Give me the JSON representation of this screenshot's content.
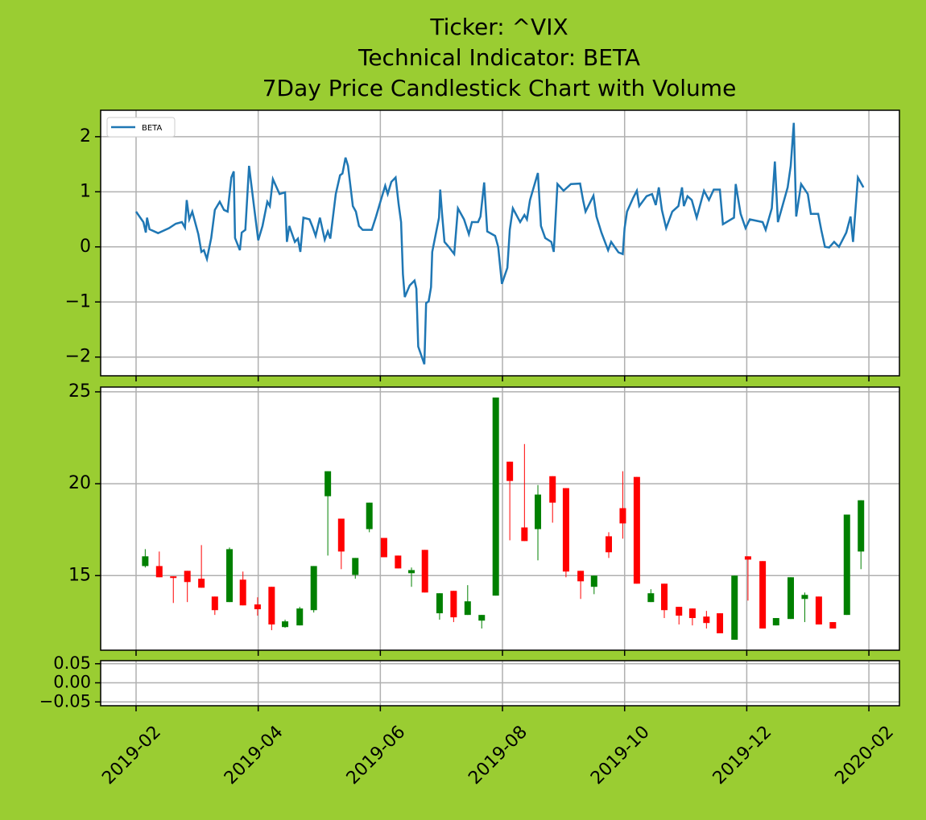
{
  "chart_data": [
    {
      "type": "line",
      "title": [
        "Ticker: ^VIX",
        "Technical Indicator: BETA",
        "7Day Price Candlestick Chart with Volume"
      ],
      "legend": "upper left",
      "grid": true,
      "ylim": [
        -2.34,
        2.48
      ],
      "yticks": [
        {
          "value": -2,
          "label": "−2"
        },
        {
          "value": -1,
          "label": "−1"
        },
        0,
        1,
        2
      ],
      "x": [
        0.0,
        0.12,
        0.16,
        0.18,
        0.22,
        0.36,
        0.54,
        0.65,
        0.75,
        0.8,
        0.83,
        0.87,
        0.92,
        1.02,
        1.07,
        1.11,
        1.16,
        1.23,
        1.29,
        1.37,
        1.44,
        1.5,
        1.56,
        1.6,
        1.62,
        1.7,
        1.73,
        1.79,
        1.85,
        1.93,
        2.0,
        2.07,
        2.15,
        2.19,
        2.24,
        2.35,
        2.44,
        2.47,
        2.51,
        2.6,
        2.65,
        2.69,
        2.74,
        2.84,
        2.89,
        2.94,
        3.01,
        3.09,
        3.14,
        3.18,
        3.27,
        3.34,
        3.38,
        3.43,
        3.47,
        3.55,
        3.6,
        3.65,
        3.71,
        3.86,
        3.93,
        4.0,
        4.08,
        4.12,
        4.18,
        4.25,
        4.3,
        4.34,
        4.37,
        4.4,
        4.48,
        4.56,
        4.59,
        4.62,
        4.72,
        4.75,
        4.79,
        4.83,
        4.85,
        4.96,
        4.98,
        5.01,
        5.05,
        5.12,
        5.21,
        5.27,
        5.37,
        5.45,
        5.5,
        5.6,
        5.64,
        5.7,
        5.75,
        5.88,
        5.93,
        5.99,
        6.08,
        6.12,
        6.17,
        6.29,
        6.36,
        6.4,
        6.45,
        6.58,
        6.63,
        6.7,
        6.8,
        6.84,
        6.9,
        7.0,
        7.12,
        7.27,
        7.32,
        7.36,
        7.49,
        7.54,
        7.62,
        7.73,
        7.78,
        7.9,
        7.97,
        8.0,
        8.04,
        8.14,
        8.2,
        8.24,
        8.36,
        8.45,
        8.51,
        8.56,
        8.61,
        8.68,
        8.78,
        8.88,
        8.94,
        8.97,
        9.03,
        9.1,
        9.18,
        9.3,
        9.38,
        9.46,
        9.56,
        9.61,
        9.79,
        9.82,
        9.9,
        9.98,
        10.05,
        10.26,
        10.31,
        10.41,
        10.46,
        10.51,
        10.67,
        10.72,
        10.77,
        10.81,
        10.89,
        11.0,
        11.05,
        11.17,
        11.22,
        11.28,
        11.35,
        11.43,
        11.51,
        11.63,
        11.7,
        11.74,
        11.82,
        11.91
      ],
      "series": [
        {
          "name": "BETA",
          "color": "#1f77b4",
          "values": [
            0.64,
            0.45,
            0.26,
            0.53,
            0.32,
            0.25,
            0.34,
            0.42,
            0.45,
            0.35,
            0.85,
            0.5,
            0.64,
            0.23,
            -0.09,
            -0.06,
            -0.22,
            0.16,
            0.67,
            0.82,
            0.67,
            0.64,
            1.26,
            1.37,
            0.16,
            -0.06,
            0.26,
            0.31,
            1.47,
            0.74,
            0.12,
            0.38,
            0.82,
            0.74,
            1.23,
            0.96,
            0.99,
            0.09,
            0.38,
            0.09,
            0.15,
            -0.09,
            0.53,
            0.5,
            0.36,
            0.2,
            0.53,
            0.13,
            0.28,
            0.15,
            0.96,
            1.3,
            1.33,
            1.62,
            1.47,
            0.74,
            0.64,
            0.38,
            0.31,
            0.31,
            0.55,
            0.82,
            1.11,
            0.96,
            1.18,
            1.26,
            0.77,
            0.45,
            -0.5,
            -0.91,
            -0.7,
            -0.61,
            -0.76,
            -1.81,
            -2.13,
            -1.02,
            -0.99,
            -0.73,
            -0.09,
            0.53,
            1.04,
            0.6,
            0.09,
            0.0,
            -0.13,
            0.7,
            0.5,
            0.23,
            0.45,
            0.45,
            0.55,
            1.17,
            0.28,
            0.2,
            0.0,
            -0.67,
            -0.38,
            0.31,
            0.7,
            0.45,
            0.58,
            0.5,
            0.85,
            1.34,
            0.38,
            0.16,
            0.09,
            -0.09,
            1.14,
            1.02,
            1.14,
            1.15,
            0.85,
            0.64,
            0.93,
            0.55,
            0.26,
            -0.06,
            0.09,
            -0.1,
            -0.13,
            0.34,
            0.64,
            0.89,
            1.02,
            0.74,
            0.92,
            0.96,
            0.76,
            1.08,
            0.67,
            0.34,
            0.64,
            0.74,
            1.08,
            0.74,
            0.92,
            0.85,
            0.53,
            1.02,
            0.85,
            1.04,
            1.04,
            0.41,
            0.53,
            1.14,
            0.6,
            0.34,
            0.5,
            0.45,
            0.31,
            0.7,
            1.55,
            0.45,
            1.08,
            1.47,
            2.25,
            0.55,
            1.14,
            0.96,
            0.6,
            0.6,
            0.31,
            0.0,
            -0.01,
            0.09,
            0.0,
            0.26,
            0.55,
            0.09,
            1.26,
            1.08
          ]
        }
      ]
    },
    {
      "type": "candlestick",
      "grid": true,
      "up_color": "green",
      "down_color": "red",
      "ylim": [
        10.94,
        25.26
      ],
      "yticks": [
        15,
        20,
        25
      ],
      "x": [
        0.15,
        0.38,
        0.61,
        0.84,
        1.07,
        1.29,
        1.53,
        1.75,
        1.99,
        2.22,
        2.44,
        2.68,
        2.91,
        3.14,
        3.36,
        3.59,
        3.82,
        4.06,
        4.29,
        4.51,
        4.73,
        4.97,
        5.2,
        5.43,
        5.66,
        5.89,
        6.12,
        6.36,
        6.58,
        6.82,
        7.04,
        7.28,
        7.5,
        7.74,
        7.97,
        8.2,
        8.43,
        8.65,
        8.89,
        9.11,
        9.34,
        9.56,
        9.8,
        10.02,
        10.26,
        10.48,
        10.72,
        10.95,
        11.18,
        11.41,
        11.64,
        11.87
      ],
      "open": [
        15.52,
        15.52,
        14.96,
        15.26,
        14.83,
        13.86,
        13.56,
        14.78,
        13.43,
        14.39,
        12.2,
        12.29,
        13.12,
        19.32,
        18.1,
        15.04,
        17.53,
        17.05,
        16.09,
        15.13,
        16.4,
        12.95,
        14.17,
        12.86,
        12.55,
        13.91,
        21.2,
        17.62,
        17.53,
        20.41,
        19.76,
        15.26,
        14.39,
        17.14,
        18.67,
        20.37,
        13.56,
        14.56,
        13.3,
        13.21,
        12.77,
        12.95,
        11.51,
        16.05,
        15.79,
        12.29,
        12.64,
        13.73,
        13.86,
        12.47,
        12.86,
        16.31
      ],
      "high": [
        16.44,
        16.31,
        14.96,
        15.26,
        16.66,
        13.86,
        16.53,
        15.22,
        13.82,
        14.39,
        12.6,
        13.3,
        15.52,
        20.68,
        18.1,
        15.96,
        18.97,
        17.05,
        16.09,
        15.44,
        16.4,
        14.04,
        14.17,
        14.48,
        12.86,
        24.69,
        21.2,
        22.16,
        19.93,
        20.41,
        19.76,
        15.26,
        15.0,
        17.36,
        20.68,
        20.37,
        14.26,
        14.56,
        13.3,
        13.21,
        13.08,
        12.95,
        15.0,
        16.05,
        15.79,
        12.69,
        14.91,
        14.08,
        13.86,
        12.47,
        18.32,
        19.1
      ],
      "low": [
        15.44,
        14.91,
        13.51,
        13.56,
        14.34,
        12.86,
        13.56,
        13.38,
        12.82,
        12.03,
        12.16,
        12.29,
        12.99,
        16.09,
        15.35,
        14.83,
        17.36,
        16.0,
        15.39,
        14.39,
        14.08,
        12.6,
        12.47,
        12.86,
        12.12,
        13.91,
        16.92,
        16.88,
        15.83,
        17.88,
        14.91,
        13.73,
        13.99,
        15.96,
        17.01,
        14.56,
        13.56,
        12.69,
        12.34,
        12.29,
        12.12,
        11.86,
        11.51,
        13.64,
        12.12,
        12.29,
        12.64,
        12.47,
        12.34,
        12.12,
        12.86,
        15.35
      ],
      "close": [
        16.05,
        14.91,
        14.87,
        14.65,
        14.34,
        13.12,
        16.44,
        13.38,
        13.17,
        12.34,
        12.51,
        13.21,
        15.52,
        20.68,
        16.31,
        15.96,
        18.97,
        16.0,
        15.39,
        15.3,
        14.08,
        14.04,
        12.73,
        13.6,
        12.86,
        24.69,
        20.15,
        16.88,
        19.41,
        18.97,
        15.22,
        14.69,
        15.0,
        16.27,
        17.84,
        14.56,
        14.04,
        13.12,
        12.82,
        12.69,
        12.42,
        11.86,
        15.0,
        15.87,
        12.12,
        12.69,
        14.91,
        13.95,
        12.34,
        12.12,
        18.32,
        19.1
      ]
    },
    {
      "type": "bar",
      "grid": true,
      "ylim": [
        -0.06,
        0.058
      ],
      "yticks": [
        {
          "value": -0.05,
          "label": "−0.05"
        },
        {
          "value": 0,
          "label": "0.00"
        },
        0.05
      ],
      "xlim": [
        -0.58,
        12.5
      ],
      "xticks": [
        {
          "value": 0,
          "label": "2019-02"
        },
        {
          "value": 2,
          "label": "2019-04"
        },
        {
          "value": 4,
          "label": "2019-06"
        },
        {
          "value": 6,
          "label": "2019-08"
        },
        {
          "value": 8,
          "label": "2019-10"
        },
        {
          "value": 10,
          "label": "2019-12"
        },
        {
          "value": 12,
          "label": "2020-02"
        }
      ]
    }
  ]
}
